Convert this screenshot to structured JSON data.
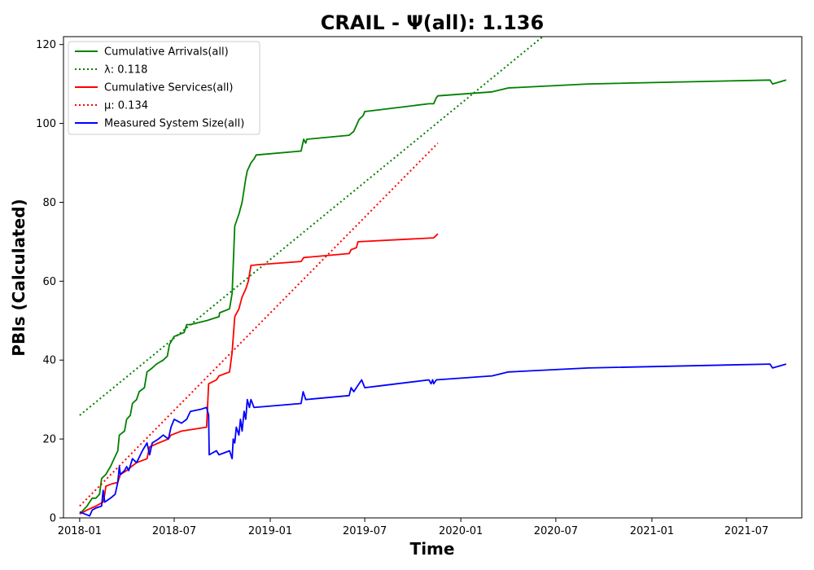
{
  "chart_data": {
    "type": "line",
    "title": "CRAIL -  Ψ(all): 1.136",
    "xlabel": "Time",
    "ylabel": "PBIs (Calculated)",
    "x_scale": "date",
    "xlim": [
      "2017-12-01",
      "2021-10-15"
    ],
    "ylim": [
      0,
      122
    ],
    "x_ticks": [
      "2018-01",
      "2018-07",
      "2019-01",
      "2019-07",
      "2020-01",
      "2020-07",
      "2021-01",
      "2021-07"
    ],
    "y_ticks": [
      0,
      20,
      40,
      60,
      80,
      100,
      120
    ],
    "grid": false,
    "legend_position": "top-left",
    "series": [
      {
        "name": "Cumulative Arrivals(all)",
        "color": "#008000",
        "style": "solid",
        "points": [
          [
            "2018-01-01",
            1
          ],
          [
            "2018-01-15",
            3
          ],
          [
            "2018-01-25",
            5
          ],
          [
            "2018-02-01",
            5
          ],
          [
            "2018-02-08",
            6
          ],
          [
            "2018-02-12",
            10
          ],
          [
            "2018-02-20",
            11
          ],
          [
            "2018-03-01",
            13
          ],
          [
            "2018-03-08",
            15
          ],
          [
            "2018-03-15",
            17
          ],
          [
            "2018-03-18",
            21
          ],
          [
            "2018-03-28",
            22
          ],
          [
            "2018-04-01",
            25
          ],
          [
            "2018-04-08",
            26
          ],
          [
            "2018-04-12",
            29
          ],
          [
            "2018-04-20",
            30
          ],
          [
            "2018-04-25",
            32
          ],
          [
            "2018-05-05",
            33
          ],
          [
            "2018-05-10",
            37
          ],
          [
            "2018-05-20",
            38
          ],
          [
            "2018-05-28",
            39
          ],
          [
            "2018-06-10",
            40
          ],
          [
            "2018-06-18",
            41
          ],
          [
            "2018-06-22",
            44
          ],
          [
            "2018-07-01",
            46
          ],
          [
            "2018-07-20",
            47
          ],
          [
            "2018-07-25",
            49
          ],
          [
            "2018-08-01",
            49
          ],
          [
            "2018-09-01",
            50
          ],
          [
            "2018-09-25",
            51
          ],
          [
            "2018-09-26",
            52
          ],
          [
            "2018-10-15",
            53
          ],
          [
            "2018-10-20",
            57
          ],
          [
            "2018-10-25",
            74
          ],
          [
            "2018-11-02",
            77
          ],
          [
            "2018-11-08",
            80
          ],
          [
            "2018-11-15",
            86
          ],
          [
            "2018-11-18",
            88
          ],
          [
            "2018-11-25",
            90
          ],
          [
            "2018-12-01",
            91
          ],
          [
            "2018-12-05",
            92
          ],
          [
            "2019-03-01",
            93
          ],
          [
            "2019-03-06",
            96
          ],
          [
            "2019-03-10",
            95
          ],
          [
            "2019-03-12",
            96
          ],
          [
            "2019-06-01",
            97
          ],
          [
            "2019-06-10",
            98
          ],
          [
            "2019-06-20",
            101
          ],
          [
            "2019-06-28",
            102
          ],
          [
            "2019-07-01",
            103
          ],
          [
            "2019-08-01",
            103.5
          ],
          [
            "2019-11-01",
            105
          ],
          [
            "2019-11-10",
            105
          ],
          [
            "2019-11-15",
            106.5
          ],
          [
            "2019-11-18",
            107
          ],
          [
            "2020-03-01",
            108
          ],
          [
            "2020-04-01",
            109
          ],
          [
            "2020-09-01",
            110
          ],
          [
            "2021-08-15",
            111
          ],
          [
            "2021-08-20",
            110
          ],
          [
            "2021-09-15",
            111
          ]
        ]
      },
      {
        "name": "λ: 0.118",
        "color": "#008000",
        "style": "dotted",
        "points": [
          [
            "2018-01-01",
            26
          ],
          [
            "2020-06-15",
            123
          ]
        ]
      },
      {
        "name": "Cumulative Services(all)",
        "color": "#ff0000",
        "style": "solid",
        "points": [
          [
            "2018-01-01",
            1
          ],
          [
            "2018-01-15",
            2
          ],
          [
            "2018-02-01",
            3
          ],
          [
            "2018-02-15",
            4
          ],
          [
            "2018-02-18",
            6
          ],
          [
            "2018-02-20",
            8
          ],
          [
            "2018-03-01",
            8.5
          ],
          [
            "2018-03-15",
            9
          ],
          [
            "2018-03-20",
            11
          ],
          [
            "2018-04-01",
            12
          ],
          [
            "2018-04-10",
            13
          ],
          [
            "2018-04-20",
            14
          ],
          [
            "2018-05-10",
            15
          ],
          [
            "2018-05-15",
            18
          ],
          [
            "2018-06-01",
            19
          ],
          [
            "2018-06-20",
            20
          ],
          [
            "2018-06-25",
            21
          ],
          [
            "2018-07-15",
            22
          ],
          [
            "2018-09-01",
            23
          ],
          [
            "2018-09-05",
            34
          ],
          [
            "2018-09-20",
            35
          ],
          [
            "2018-09-25",
            36
          ],
          [
            "2018-10-15",
            37
          ],
          [
            "2018-10-20",
            42
          ],
          [
            "2018-10-25",
            51
          ],
          [
            "2018-11-02",
            53
          ],
          [
            "2018-11-08",
            56
          ],
          [
            "2018-11-15",
            58
          ],
          [
            "2018-11-20",
            60
          ],
          [
            "2018-11-25",
            64
          ],
          [
            "2018-12-10",
            64.2
          ],
          [
            "2019-03-01",
            65
          ],
          [
            "2019-03-06",
            66
          ],
          [
            "2019-06-01",
            67
          ],
          [
            "2019-06-05",
            68
          ],
          [
            "2019-06-15",
            68.5
          ],
          [
            "2019-06-18",
            70
          ],
          [
            "2019-11-10",
            71
          ],
          [
            "2019-11-18",
            72
          ]
        ]
      },
      {
        "name": "μ: 0.134",
        "color": "#ff0000",
        "style": "dotted",
        "points": [
          [
            "2018-01-01",
            3
          ],
          [
            "2019-11-18",
            95
          ]
        ]
      },
      {
        "name": "Measured System Size(all)",
        "color": "#0000ff",
        "style": "solid",
        "points": [
          [
            "2018-01-01",
            1.5
          ],
          [
            "2018-01-20",
            0.5
          ],
          [
            "2018-01-25",
            2
          ],
          [
            "2018-02-01",
            2.5
          ],
          [
            "2018-02-12",
            3
          ],
          [
            "2018-02-15",
            7
          ],
          [
            "2018-02-18",
            4
          ],
          [
            "2018-03-01",
            5
          ],
          [
            "2018-03-10",
            6
          ],
          [
            "2018-03-15",
            9
          ],
          [
            "2018-03-18",
            13
          ],
          [
            "2018-03-20",
            11
          ],
          [
            "2018-03-28",
            12
          ],
          [
            "2018-04-01",
            13
          ],
          [
            "2018-04-05",
            12
          ],
          [
            "2018-04-12",
            15
          ],
          [
            "2018-04-20",
            14
          ],
          [
            "2018-05-01",
            17
          ],
          [
            "2018-05-10",
            19
          ],
          [
            "2018-05-15",
            16
          ],
          [
            "2018-05-20",
            19
          ],
          [
            "2018-06-01",
            20
          ],
          [
            "2018-06-10",
            21
          ],
          [
            "2018-06-20",
            20
          ],
          [
            "2018-06-25",
            23
          ],
          [
            "2018-07-01",
            25
          ],
          [
            "2018-07-15",
            24
          ],
          [
            "2018-07-25",
            25
          ],
          [
            "2018-08-01",
            27
          ],
          [
            "2018-08-20",
            27.5
          ],
          [
            "2018-09-01",
            28
          ],
          [
            "2018-09-05",
            26
          ],
          [
            "2018-09-06",
            16
          ],
          [
            "2018-09-20",
            17
          ],
          [
            "2018-09-25",
            16
          ],
          [
            "2018-10-15",
            17
          ],
          [
            "2018-10-20",
            15
          ],
          [
            "2018-10-22",
            20
          ],
          [
            "2018-10-25",
            19
          ],
          [
            "2018-10-28",
            23
          ],
          [
            "2018-11-02",
            21
          ],
          [
            "2018-11-05",
            25
          ],
          [
            "2018-11-08",
            22
          ],
          [
            "2018-11-12",
            27
          ],
          [
            "2018-11-15",
            25
          ],
          [
            "2018-11-18",
            30
          ],
          [
            "2018-11-22",
            28
          ],
          [
            "2018-11-25",
            30
          ],
          [
            "2018-12-01",
            28
          ],
          [
            "2019-03-01",
            29
          ],
          [
            "2019-03-05",
            32
          ],
          [
            "2019-03-10",
            30
          ],
          [
            "2019-06-01",
            31
          ],
          [
            "2019-06-05",
            33
          ],
          [
            "2019-06-10",
            32
          ],
          [
            "2019-06-25",
            35
          ],
          [
            "2019-07-01",
            33
          ],
          [
            "2019-08-01",
            33.5
          ],
          [
            "2019-11-01",
            35
          ],
          [
            "2019-11-05",
            34
          ],
          [
            "2019-11-08",
            35
          ],
          [
            "2019-11-10",
            34
          ],
          [
            "2019-11-15",
            35
          ],
          [
            "2020-03-01",
            36
          ],
          [
            "2020-04-01",
            37
          ],
          [
            "2020-09-01",
            38
          ],
          [
            "2021-08-15",
            39
          ],
          [
            "2021-08-20",
            38
          ],
          [
            "2021-09-15",
            39
          ]
        ]
      }
    ]
  }
}
